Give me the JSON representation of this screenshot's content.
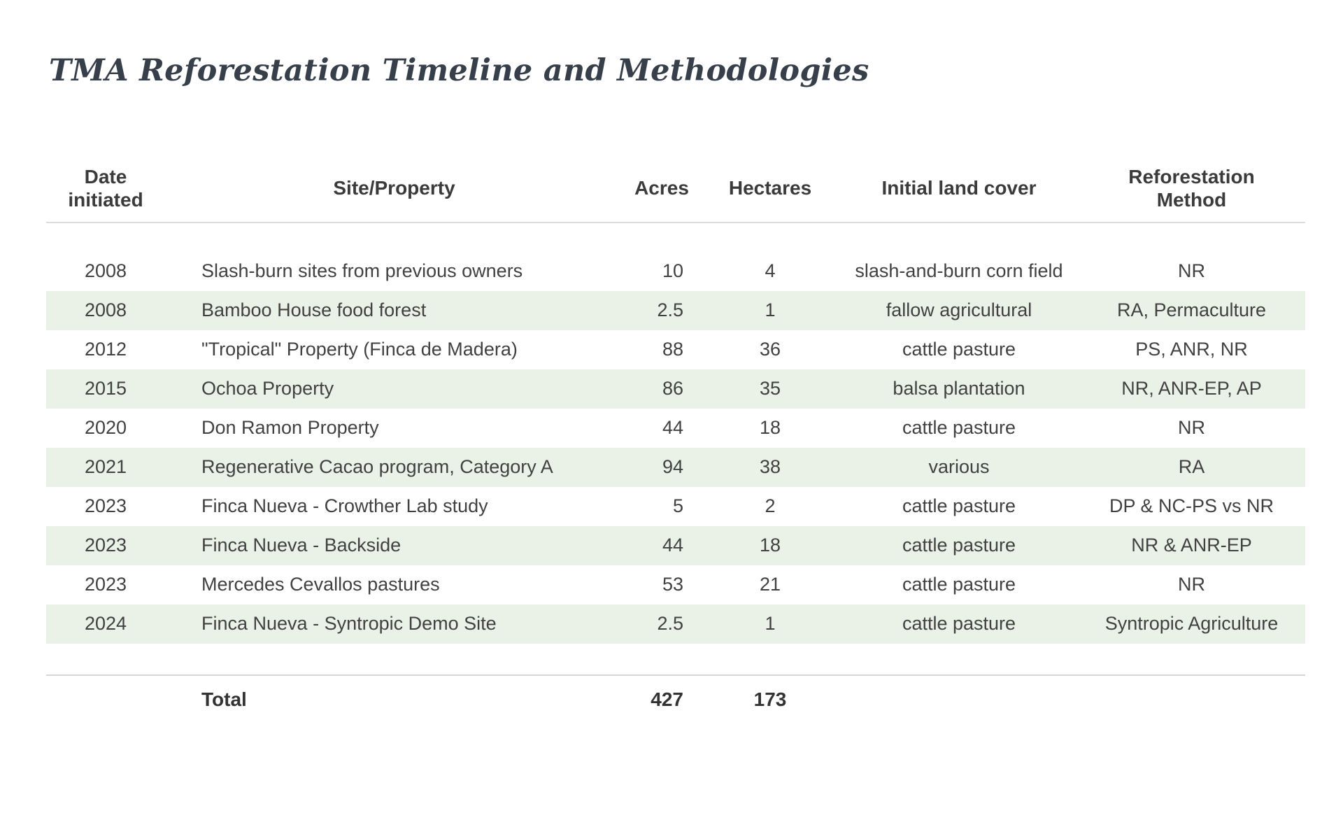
{
  "page_title": "TMA Reforestation Timeline and Methodologies",
  "chart_data": {
    "type": "table",
    "title": "TMA Reforestation Timeline and Methodologies",
    "columns": [
      "Date initiated",
      "Site/Property",
      "Acres",
      "Hectares",
      "Initial land cover",
      "Reforestation Method"
    ],
    "rows": [
      {
        "date": "2008",
        "site": "Slash-burn sites from previous owners",
        "acres": 10,
        "hectares": 4,
        "cover": "slash-and-burn corn field",
        "method": "NR"
      },
      {
        "date": "2008",
        "site": "Bamboo House food forest",
        "acres": 2.5,
        "hectares": 1,
        "cover": "fallow agricultural",
        "method": "RA, Permaculture"
      },
      {
        "date": "2012",
        "site": "\"Tropical\" Property (Finca de Madera)",
        "acres": 88,
        "hectares": 36,
        "cover": "cattle pasture",
        "method": "PS, ANR, NR"
      },
      {
        "date": "2015",
        "site": "Ochoa Property",
        "acres": 86,
        "hectares": 35,
        "cover": "balsa plantation",
        "method": "NR, ANR-EP, AP"
      },
      {
        "date": "2020",
        "site": "Don Ramon Property",
        "acres": 44,
        "hectares": 18,
        "cover": "cattle pasture",
        "method": "NR"
      },
      {
        "date": "2021",
        "site": "Regenerative Cacao program, Category A",
        "acres": 94,
        "hectares": 38,
        "cover": "various",
        "method": "RA"
      },
      {
        "date": "2023",
        "site": "Finca Nueva - Crowther Lab study",
        "acres": 5,
        "hectares": 2,
        "cover": "cattle pasture",
        "method": "DP & NC-PS vs NR"
      },
      {
        "date": "2023",
        "site": "Finca Nueva - Backside",
        "acres": 44,
        "hectares": 18,
        "cover": "cattle pasture",
        "method": "NR & ANR-EP"
      },
      {
        "date": "2023",
        "site": "Mercedes Cevallos pastures",
        "acres": 53,
        "hectares": 21,
        "cover": "cattle pasture",
        "method": "NR"
      },
      {
        "date": "2024",
        "site": "Finca Nueva - Syntropic Demo Site",
        "acres": 2.5,
        "hectares": 1,
        "cover": "cattle pasture",
        "method": "Syntropic Agriculture"
      }
    ],
    "total": {
      "label": "Total",
      "acres": 427,
      "hectares": 173
    },
    "layout": {
      "zebra_striping": true,
      "grid": "off"
    }
  },
  "colors": {
    "alt_row_background": "#eaf2e8",
    "divider": "#dcdcdc",
    "body_text": "#414141",
    "title_text": "#37404a"
  }
}
